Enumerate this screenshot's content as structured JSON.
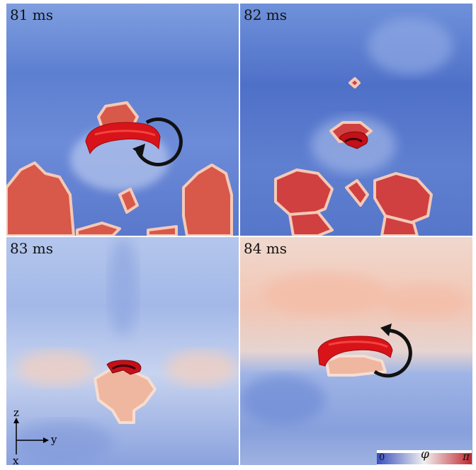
{
  "panels": [
    {
      "time_label": "81 ms"
    },
    {
      "time_label": "82 ms"
    },
    {
      "time_label": "83 ms"
    },
    {
      "time_label": "84 ms"
    }
  ],
  "axes": {
    "z_label": "z",
    "y_label": "y",
    "x_label": "x"
  },
  "colorbar": {
    "min_label": "0",
    "symbol": "φ",
    "max_label": "π",
    "low_color": "#3a4fc0",
    "mid_color": "#f0f0f0",
    "high_color": "#c0262f"
  }
}
